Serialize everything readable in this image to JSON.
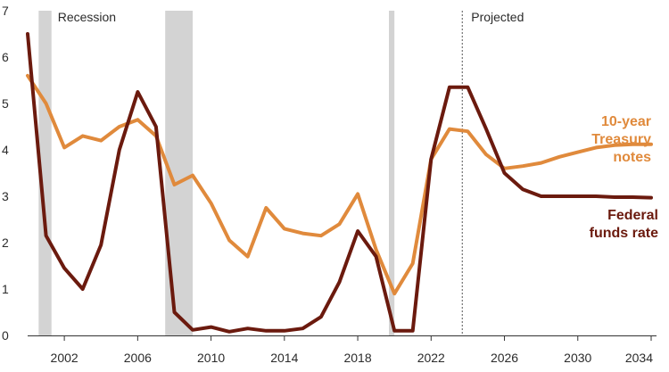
{
  "chart_data": {
    "type": "line",
    "title": "",
    "xlabel": "",
    "ylabel": "",
    "xlim": [
      2000,
      2034
    ],
    "ylim": [
      0,
      7
    ],
    "y_ticks": [
      0,
      1,
      2,
      3,
      4,
      5,
      6,
      7
    ],
    "x_ticks": [
      2002,
      2006,
      2010,
      2014,
      2018,
      2022,
      2026,
      2030,
      2034
    ],
    "grid": false,
    "recessions": [
      {
        "start": 2000.6,
        "end": 2001.3
      },
      {
        "start": 2007.5,
        "end": 2009.0
      },
      {
        "start": 2019.7,
        "end": 2020.0
      }
    ],
    "recession_label": "Recession",
    "projected": {
      "start": 2023.7,
      "label": "Projected"
    },
    "series": [
      {
        "name": "10-year Treasury notes",
        "label_lines": [
          "10-year",
          "Treasury",
          "notes"
        ],
        "color": "#E08A3C",
        "points": [
          [
            2000,
            5.6
          ],
          [
            2001,
            5.0
          ],
          [
            2002,
            4.05
          ],
          [
            2003,
            4.3
          ],
          [
            2004,
            4.2
          ],
          [
            2005,
            4.5
          ],
          [
            2006,
            4.65
          ],
          [
            2007,
            4.3
          ],
          [
            2008,
            3.25
          ],
          [
            2009,
            3.45
          ],
          [
            2010,
            2.85
          ],
          [
            2011,
            2.05
          ],
          [
            2012,
            1.7
          ],
          [
            2013,
            2.75
          ],
          [
            2014,
            2.3
          ],
          [
            2015,
            2.2
          ],
          [
            2016,
            2.15
          ],
          [
            2017,
            2.4
          ],
          [
            2018,
            3.05
          ],
          [
            2019,
            1.85
          ],
          [
            2020,
            0.9
          ],
          [
            2021,
            1.55
          ],
          [
            2022,
            3.8
          ],
          [
            2023,
            4.45
          ],
          [
            2024,
            4.4
          ],
          [
            2025,
            3.9
          ],
          [
            2026,
            3.6
          ],
          [
            2027,
            3.65
          ],
          [
            2028,
            3.72
          ],
          [
            2029,
            3.85
          ],
          [
            2030,
            3.95
          ],
          [
            2031,
            4.05
          ],
          [
            2032,
            4.1
          ],
          [
            2033,
            4.12
          ],
          [
            2034,
            4.12
          ]
        ]
      },
      {
        "name": "Federal funds rate",
        "label_lines": [
          "Federal",
          "funds rate"
        ],
        "color": "#6B1A0E",
        "points": [
          [
            2000,
            6.5
          ],
          [
            2001,
            2.15
          ],
          [
            2002,
            1.45
          ],
          [
            2003,
            1.0
          ],
          [
            2004,
            1.95
          ],
          [
            2005,
            4.0
          ],
          [
            2006,
            5.25
          ],
          [
            2007,
            4.5
          ],
          [
            2008,
            0.5
          ],
          [
            2009,
            0.12
          ],
          [
            2010,
            0.18
          ],
          [
            2011,
            0.08
          ],
          [
            2012,
            0.15
          ],
          [
            2013,
            0.1
          ],
          [
            2014,
            0.1
          ],
          [
            2015,
            0.15
          ],
          [
            2016,
            0.4
          ],
          [
            2017,
            1.15
          ],
          [
            2018,
            2.25
          ],
          [
            2019,
            1.7
          ],
          [
            2020,
            0.1
          ],
          [
            2021,
            0.1
          ],
          [
            2022,
            3.8
          ],
          [
            2023,
            5.35
          ],
          [
            2024,
            5.35
          ],
          [
            2025,
            4.45
          ],
          [
            2026,
            3.5
          ],
          [
            2027,
            3.15
          ],
          [
            2028,
            3.0
          ],
          [
            2029,
            3.0
          ],
          [
            2030,
            3.0
          ],
          [
            2031,
            3.0
          ],
          [
            2032,
            2.98
          ],
          [
            2033,
            2.98
          ],
          [
            2034,
            2.97
          ]
        ]
      }
    ]
  }
}
